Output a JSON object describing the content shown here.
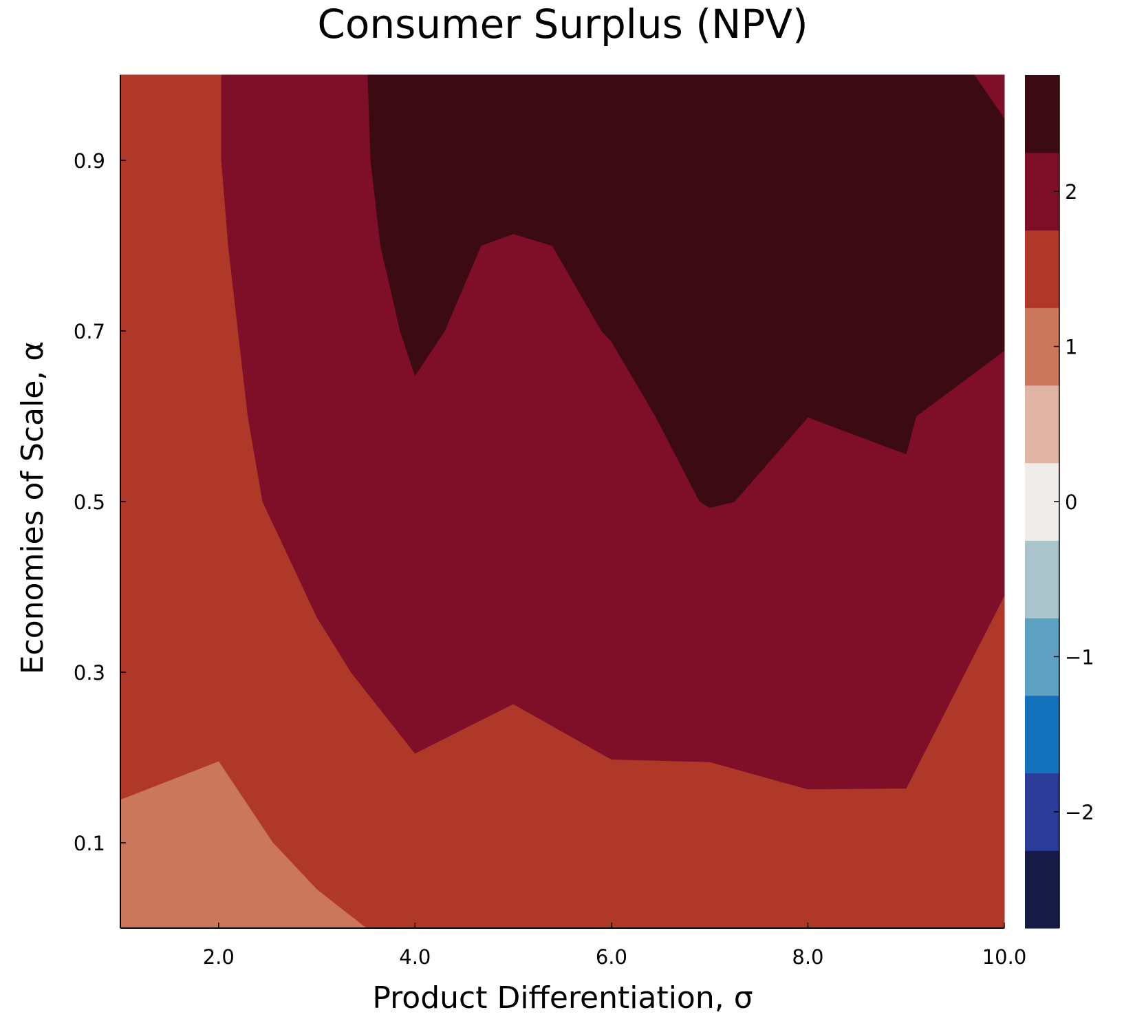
{
  "chart_data": {
    "type": "contour",
    "title": "Consumer Surplus (NPV)",
    "xlabel": "Product Differentiation, σ",
    "ylabel": "Economies of Scale, α",
    "xlim": [
      1.0,
      10.0
    ],
    "ylim": [
      0.0,
      1.0
    ],
    "xticks": [
      2.0,
      4.0,
      6.0,
      8.0,
      10.0
    ],
    "xtick_labels": [
      "2.0",
      "4.0",
      "6.0",
      "8.0",
      "10.0"
    ],
    "yticks": [
      0.1,
      0.3,
      0.5,
      0.7,
      0.9
    ],
    "ytick_labels": [
      "0.1",
      "0.3",
      "0.5",
      "0.7",
      "0.9"
    ],
    "grid": false,
    "colorbar": {
      "range": [
        -2.75,
        2.75
      ],
      "ticks": [
        -2,
        -1,
        0,
        1,
        2
      ],
      "tick_labels": [
        "−2",
        "−1",
        "0",
        "1",
        "2"
      ],
      "levels": [
        {
          "from": -2.75,
          "to": -2.25,
          "color": "#161b44"
        },
        {
          "from": -2.25,
          "to": -1.75,
          "color": "#2b3d99"
        },
        {
          "from": -1.75,
          "to": -1.25,
          "color": "#1471bb"
        },
        {
          "from": -1.25,
          "to": -0.75,
          "color": "#5da0c2"
        },
        {
          "from": -0.75,
          "to": -0.25,
          "color": "#abc4cb"
        },
        {
          "from": -0.25,
          "to": 0.25,
          "color": "#f0ecea"
        },
        {
          "from": 0.25,
          "to": 0.75,
          "color": "#e0b5a6"
        },
        {
          "from": 0.75,
          "to": 1.25,
          "color": "#cb775b"
        },
        {
          "from": 1.25,
          "to": 1.75,
          "color": "#b03828"
        },
        {
          "from": 1.75,
          "to": 2.25,
          "color": "#7f0e28"
        },
        {
          "from": 2.25,
          "to": 2.75,
          "color": "#3b0a13"
        }
      ]
    },
    "regions": [
      {
        "level": "1.25–1.75",
        "color": "#b03828",
        "points": [
          [
            1.0,
            0.0
          ],
          [
            10.0,
            0.0
          ],
          [
            10.0,
            1.0
          ],
          [
            1.0,
            1.0
          ]
        ]
      },
      {
        "level": "0.75–1.25",
        "color": "#cb775b",
        "points": [
          [
            1.0,
            0.0
          ],
          [
            1.0,
            0.15
          ],
          [
            2.0,
            0.195
          ],
          [
            2.55,
            0.1
          ],
          [
            3.0,
            0.045
          ],
          [
            3.5,
            0.0
          ]
        ]
      },
      {
        "level": "1.75–2.25",
        "color": "#7f0e28",
        "points": [
          [
            2.03,
            1.0
          ],
          [
            2.03,
            0.9
          ],
          [
            2.1,
            0.8
          ],
          [
            2.3,
            0.6
          ],
          [
            2.45,
            0.5
          ],
          [
            3.0,
            0.365
          ],
          [
            3.35,
            0.3
          ],
          [
            4.0,
            0.205
          ],
          [
            5.0,
            0.263
          ],
          [
            6.0,
            0.198
          ],
          [
            7.0,
            0.195
          ],
          [
            8.0,
            0.163
          ],
          [
            9.0,
            0.164
          ],
          [
            10.0,
            0.39
          ],
          [
            10.0,
            1.0
          ]
        ]
      },
      {
        "level": "2.25–2.75",
        "color": "#3b0a13",
        "points": [
          [
            3.52,
            1.0
          ],
          [
            3.55,
            0.9
          ],
          [
            3.65,
            0.8
          ],
          [
            3.85,
            0.7
          ],
          [
            4.0,
            0.648
          ],
          [
            4.3,
            0.7
          ],
          [
            4.67,
            0.8
          ],
          [
            5.0,
            0.814
          ],
          [
            5.4,
            0.8
          ],
          [
            5.9,
            0.7
          ],
          [
            6.0,
            0.688
          ],
          [
            6.45,
            0.6
          ],
          [
            6.9,
            0.5
          ],
          [
            7.0,
            0.493
          ],
          [
            7.25,
            0.5
          ],
          [
            8.0,
            0.599
          ],
          [
            9.0,
            0.556
          ],
          [
            9.1,
            0.6
          ],
          [
            10.0,
            0.677
          ],
          [
            10.0,
            0.95
          ],
          [
            9.7,
            1.0
          ]
        ]
      },
      {
        "level": "1.75–2.25",
        "color": "#7f0e28",
        "points": [
          [
            9.7,
            1.0
          ],
          [
            10.0,
            0.95
          ],
          [
            10.0,
            1.0
          ]
        ]
      }
    ]
  }
}
